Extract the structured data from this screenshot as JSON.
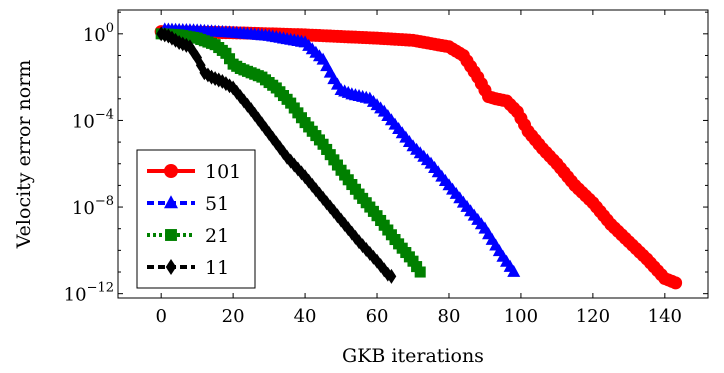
{
  "chart_data": {
    "type": "line",
    "xlabel": "GKB iterations",
    "ylabel": "Velocity error norm",
    "xlim": [
      -12,
      152
    ],
    "ylim_log10": [
      -12.2,
      1.1
    ],
    "y_scale": "log",
    "grid": false,
    "legend_position": "bottom-left",
    "x_ticks": [
      0,
      20,
      40,
      60,
      80,
      100,
      120,
      140
    ],
    "x_tick_labels": [
      "0",
      "20",
      "40",
      "60",
      "80",
      "100",
      "120",
      "140"
    ],
    "y_ticks_log10": [
      0,
      -4,
      -8,
      -12
    ],
    "y_tick_bases": [
      "10",
      "10",
      "10",
      "10"
    ],
    "y_tick_exponents": [
      "0",
      "−4",
      "−8",
      "−12"
    ],
    "series": [
      {
        "name": "101",
        "color": "#ff0000",
        "marker": "circle",
        "line": "solid",
        "x": [
          0,
          20,
          40,
          60,
          70,
          80,
          84,
          88,
          91,
          93,
          96,
          99,
          102,
          106,
          110,
          115,
          120,
          125,
          130,
          135,
          140,
          143
        ],
        "log10_y": [
          0.1,
          0.05,
          -0.05,
          -0.2,
          -0.3,
          -0.6,
          -1.0,
          -2.0,
          -2.9,
          -3.0,
          -3.1,
          -3.6,
          -4.5,
          -5.3,
          -6.0,
          -7.0,
          -7.8,
          -8.8,
          -9.6,
          -10.4,
          -11.3,
          -11.5
        ]
      },
      {
        "name": "51",
        "color": "#0000ff",
        "marker": "triangle",
        "line": "dashed",
        "x": [
          1,
          10,
          20,
          30,
          40,
          45,
          48,
          50,
          53,
          58,
          62,
          66,
          70,
          75,
          80,
          85,
          90,
          95,
          98
        ],
        "log10_y": [
          0.2,
          0.15,
          0.05,
          -0.1,
          -0.4,
          -1.2,
          -2.1,
          -2.6,
          -2.8,
          -3.0,
          -3.6,
          -4.4,
          -5.2,
          -6.0,
          -7.0,
          -8.0,
          -9.0,
          -10.3,
          -11.0
        ]
      },
      {
        "name": "21",
        "color": "#008000",
        "marker": "square",
        "line": "dotted",
        "x": [
          0,
          5,
          10,
          15,
          18,
          20,
          22,
          25,
          28,
          32,
          36,
          40,
          45,
          50,
          55,
          60,
          65,
          70,
          72
        ],
        "log10_y": [
          0.0,
          -0.05,
          -0.2,
          -0.5,
          -0.9,
          -1.4,
          -1.6,
          -1.8,
          -2.0,
          -2.5,
          -3.2,
          -4.1,
          -5.1,
          -6.3,
          -7.4,
          -8.4,
          -9.5,
          -10.5,
          -11.0
        ]
      },
      {
        "name": "11",
        "color": "#000000",
        "marker": "diamond",
        "line": "dashed",
        "x": [
          0,
          2,
          5,
          8,
          10,
          12,
          14,
          17,
          20,
          25,
          30,
          35,
          40,
          45,
          50,
          55,
          60,
          63,
          64
        ],
        "log10_y": [
          0.0,
          -0.1,
          -0.4,
          -0.6,
          -1.1,
          -1.8,
          -2.0,
          -2.2,
          -2.5,
          -3.5,
          -4.6,
          -5.7,
          -6.6,
          -7.6,
          -8.6,
          -9.6,
          -10.5,
          -11.1,
          -11.2
        ]
      }
    ]
  }
}
